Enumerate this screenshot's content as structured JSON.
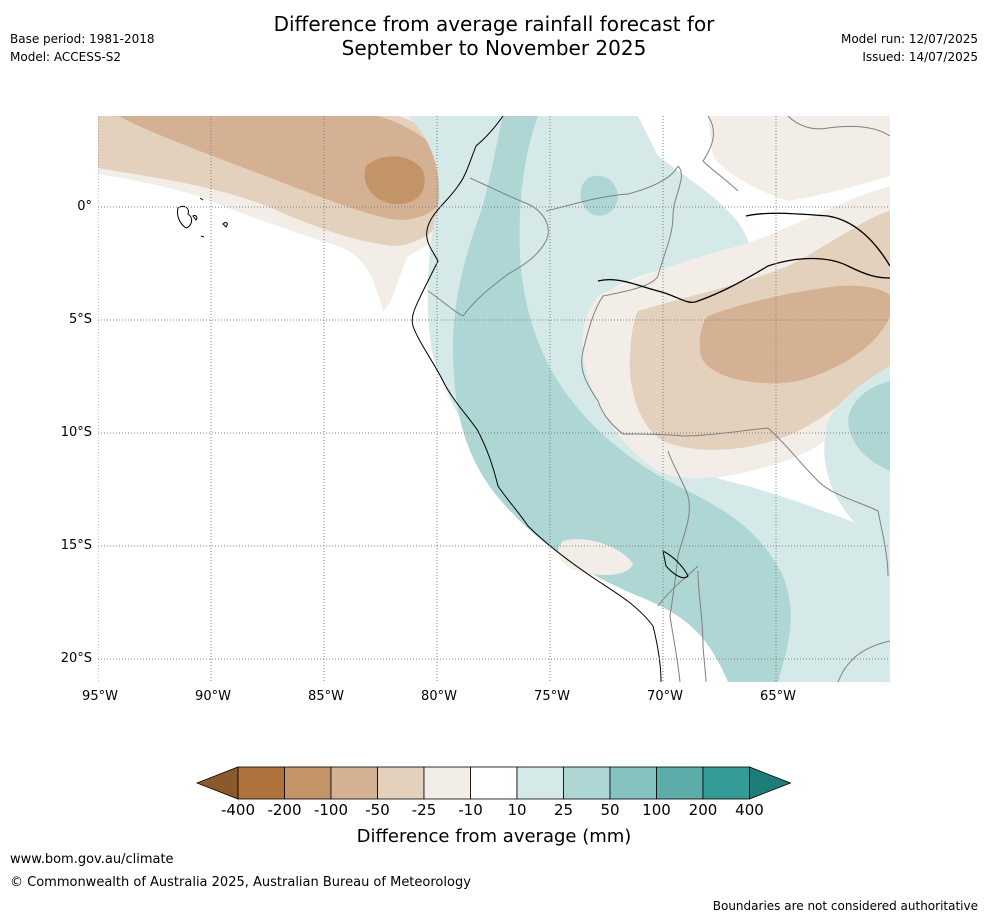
{
  "title_line1": "Difference from average rainfall forecast for",
  "title_line2": "September to November 2025",
  "base_period": "Base period: 1981-2018",
  "model": "Model: ACCESS-S2",
  "model_run": "Model run: 12/07/2025",
  "issued": "Issued: 14/07/2025",
  "lat_labels": [
    "0°",
    "5°S",
    "10°S",
    "15°S",
    "20°S"
  ],
  "lon_labels": [
    "95°W",
    "90°W",
    "85°W",
    "80°W",
    "75°W",
    "70°W",
    "65°W"
  ],
  "colorbar": {
    "title": "Difference from average (mm)",
    "ticks": [
      "-400",
      "-200",
      "-100",
      "-50",
      "-25",
      "-10",
      "10",
      "25",
      "50",
      "100",
      "200",
      "400"
    ],
    "colors": [
      "#8c5a2a",
      "#ae733c",
      "#c29468",
      "#d4b192",
      "#e3d0bd",
      "#f2ede7",
      "#ffffff",
      "#d5e9e8",
      "#aed6d5",
      "#86c3c0",
      "#5cadaa",
      "#349b97",
      "#1f7d79"
    ]
  },
  "footer": {
    "url": "www.bom.gov.au/climate",
    "copyright": "© Commonwealth of Australia 2025, Australian Bureau of Meteorology",
    "disclaimer": "Boundaries are not considered authoritative"
  }
}
